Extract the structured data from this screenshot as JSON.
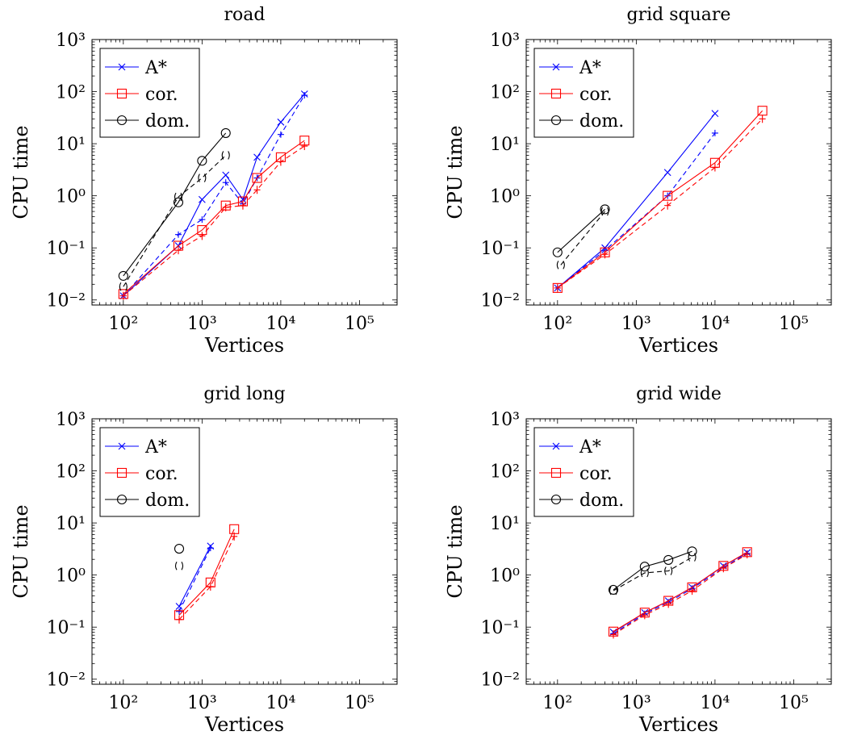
{
  "chart_data": [
    {
      "type": "line",
      "title": "road",
      "xlabel": "Vertices",
      "ylabel": "CPU time",
      "xscale": "log",
      "yscale": "log",
      "xlim": [
        40,
        300000
      ],
      "ylim": [
        0.008,
        1000
      ],
      "xticks": [
        100,
        1000,
        10000,
        100000
      ],
      "yticks": [
        0.01,
        0.1,
        1,
        10,
        100,
        1000
      ],
      "legend": {
        "placement": "top-left",
        "entries": [
          "A*",
          "cor.",
          "dom."
        ]
      },
      "series": [
        {
          "name": "A*",
          "style": "solid",
          "color": "#0000ff",
          "marker": "x",
          "points": [
            [
              100,
              0.012
            ],
            [
              500,
              0.11
            ],
            [
              1000,
              0.85
            ],
            [
              2000,
              2.5
            ],
            [
              3300,
              0.85
            ],
            [
              5000,
              5.5
            ],
            [
              10000,
              26
            ],
            [
              20000,
              90
            ]
          ]
        },
        {
          "name": "A*",
          "style": "dashed",
          "color": "#0000ff",
          "marker": "plus",
          "points": [
            [
              100,
              0.012
            ],
            [
              500,
              0.18
            ],
            [
              1000,
              0.35
            ],
            [
              2000,
              1.8
            ],
            [
              3300,
              0.7
            ],
            [
              5000,
              2.2
            ],
            [
              10000,
              15
            ],
            [
              20000,
              85
            ]
          ]
        },
        {
          "name": "cor.",
          "style": "solid",
          "color": "#ff0000",
          "marker": "square",
          "points": [
            [
              100,
              0.013
            ],
            [
              500,
              0.11
            ],
            [
              1000,
              0.22
            ],
            [
              2000,
              0.65
            ],
            [
              3300,
              0.78
            ],
            [
              5000,
              2.2
            ],
            [
              10000,
              5.5
            ],
            [
              20000,
              11.5
            ]
          ]
        },
        {
          "name": "cor.",
          "style": "dashed",
          "color": "#ff0000",
          "marker": "bar",
          "points": [
            [
              100,
              0.012
            ],
            [
              500,
              0.09
            ],
            [
              1000,
              0.17
            ],
            [
              2000,
              0.6
            ],
            [
              3300,
              0.65
            ],
            [
              5000,
              1.3
            ],
            [
              10000,
              4.5
            ],
            [
              20000,
              9
            ]
          ]
        },
        {
          "name": "dom.",
          "style": "solid",
          "color": "#000000",
          "marker": "circle",
          "points": [
            [
              100,
              0.029
            ],
            [
              500,
              0.75
            ],
            [
              1000,
              4.7
            ],
            [
              2000,
              16
            ]
          ]
        },
        {
          "name": "dom.",
          "style": "dashed",
          "color": "#000000",
          "marker": "arc",
          "points": [
            [
              100,
              0.018
            ],
            [
              500,
              0.95
            ],
            [
              1000,
              2.2
            ],
            [
              2000,
              6
            ]
          ]
        }
      ]
    },
    {
      "type": "line",
      "title": "grid square",
      "xlabel": "Vertices",
      "ylabel": "CPU time",
      "xscale": "log",
      "yscale": "log",
      "xlim": [
        40,
        300000
      ],
      "ylim": [
        0.008,
        1000
      ],
      "xticks": [
        100,
        1000,
        10000,
        100000
      ],
      "yticks": [
        0.01,
        0.1,
        1,
        10,
        100,
        1000
      ],
      "legend": {
        "placement": "top-left",
        "entries": [
          "A*",
          "cor.",
          "dom."
        ]
      },
      "series": [
        {
          "name": "A*",
          "style": "solid",
          "color": "#0000ff",
          "marker": "x",
          "points": [
            [
              100,
              0.017
            ],
            [
              400,
              0.1
            ],
            [
              2500,
              2.8
            ],
            [
              10000,
              38
            ]
          ]
        },
        {
          "name": "A*",
          "style": "dashed",
          "color": "#0000ff",
          "marker": "plus",
          "points": [
            [
              100,
              0.017
            ],
            [
              400,
              0.09
            ],
            [
              2500,
              1.0
            ],
            [
              10000,
              16
            ]
          ]
        },
        {
          "name": "cor.",
          "style": "solid",
          "color": "#ff0000",
          "marker": "square",
          "points": [
            [
              100,
              0.017
            ],
            [
              400,
              0.082
            ],
            [
              2500,
              1.0
            ],
            [
              10000,
              4.3
            ],
            [
              40000,
              43
            ]
          ]
        },
        {
          "name": "cor.",
          "style": "dashed",
          "color": "#ff0000",
          "marker": "bar",
          "points": [
            [
              100,
              0.017
            ],
            [
              400,
              0.075
            ],
            [
              2500,
              0.65
            ],
            [
              10000,
              3.5
            ],
            [
              40000,
              30
            ]
          ]
        },
        {
          "name": "dom.",
          "style": "solid",
          "color": "#000000",
          "marker": "circle",
          "points": [
            [
              100,
              0.082
            ],
            [
              400,
              0.55
            ]
          ]
        },
        {
          "name": "dom.",
          "style": "dashed",
          "color": "#000000",
          "marker": "arc",
          "points": [
            [
              110,
              0.047
            ],
            [
              400,
              0.5
            ]
          ]
        }
      ]
    },
    {
      "type": "line",
      "title": "grid long",
      "xlabel": "Vertices",
      "ylabel": "CPU time",
      "xscale": "log",
      "yscale": "log",
      "xlim": [
        40,
        300000
      ],
      "ylim": [
        0.008,
        1000
      ],
      "xticks": [
        100,
        1000,
        10000,
        100000
      ],
      "yticks": [
        0.01,
        0.1,
        1,
        10,
        100,
        1000
      ],
      "legend": {
        "placement": "top-left",
        "entries": [
          "A*",
          "cor.",
          "dom."
        ]
      },
      "series": [
        {
          "name": "A*",
          "style": "solid",
          "color": "#0000ff",
          "marker": "x",
          "points": [
            [
              512,
              0.25
            ],
            [
              1280,
              3.6
            ]
          ]
        },
        {
          "name": "A*",
          "style": "dashed",
          "color": "#0000ff",
          "marker": "plus",
          "points": [
            [
              512,
              0.2
            ],
            [
              1280,
              3.3
            ]
          ]
        },
        {
          "name": "cor.",
          "style": "solid",
          "color": "#ff0000",
          "marker": "square",
          "points": [
            [
              512,
              0.17
            ],
            [
              1280,
              0.72
            ],
            [
              2560,
              7.6
            ]
          ]
        },
        {
          "name": "cor.",
          "style": "dashed",
          "color": "#ff0000",
          "marker": "bar",
          "points": [
            [
              512,
              0.14
            ],
            [
              1280,
              0.6
            ],
            [
              2560,
              5.5
            ]
          ]
        },
        {
          "name": "dom.",
          "style": "solid",
          "color": "#000000",
          "marker": "circle",
          "points": [
            [
              512,
              3.2
            ]
          ]
        },
        {
          "name": "dom.",
          "style": "dashed",
          "color": "#000000",
          "marker": "arc",
          "points": [
            [
              512,
              1.5
            ]
          ]
        }
      ]
    },
    {
      "type": "line",
      "title": "grid wide",
      "xlabel": "Vertices",
      "ylabel": "CPU time",
      "xscale": "log",
      "yscale": "log",
      "xlim": [
        40,
        300000
      ],
      "ylim": [
        0.008,
        1000
      ],
      "xticks": [
        100,
        1000,
        10000,
        100000
      ],
      "yticks": [
        0.01,
        0.1,
        1,
        10,
        100,
        1000
      ],
      "legend": {
        "placement": "top-left",
        "entries": [
          "A*",
          "cor.",
          "dom."
        ]
      },
      "series": [
        {
          "name": "A*",
          "style": "solid",
          "color": "#0000ff",
          "marker": "x",
          "points": [
            [
              512,
              0.08
            ],
            [
              1280,
              0.19
            ],
            [
              2560,
              0.32
            ],
            [
              5120,
              0.58
            ],
            [
              12800,
              1.5
            ],
            [
              25600,
              2.7
            ]
          ]
        },
        {
          "name": "A*",
          "style": "dashed",
          "color": "#0000ff",
          "marker": "plus",
          "points": [
            [
              512,
              0.075
            ],
            [
              1280,
              0.18
            ],
            [
              2560,
              0.3
            ],
            [
              5120,
              0.55
            ],
            [
              12800,
              1.4
            ],
            [
              25600,
              2.6
            ]
          ]
        },
        {
          "name": "cor.",
          "style": "solid",
          "color": "#ff0000",
          "marker": "square",
          "points": [
            [
              512,
              0.082
            ],
            [
              1280,
              0.19
            ],
            [
              2560,
              0.32
            ],
            [
              5120,
              0.58
            ],
            [
              12800,
              1.5
            ],
            [
              25600,
              2.75
            ]
          ]
        },
        {
          "name": "cor.",
          "style": "dashed",
          "color": "#ff0000",
          "marker": "bar",
          "points": [
            [
              512,
              0.072
            ],
            [
              1280,
              0.17
            ],
            [
              2560,
              0.28
            ],
            [
              5120,
              0.5
            ],
            [
              12800,
              1.35
            ],
            [
              25600,
              2.5
            ]
          ]
        },
        {
          "name": "dom.",
          "style": "solid",
          "color": "#000000",
          "marker": "circle",
          "points": [
            [
              512,
              0.52
            ],
            [
              1280,
              1.45
            ],
            [
              2560,
              1.95
            ],
            [
              5120,
              2.85
            ]
          ]
        },
        {
          "name": "dom.",
          "style": "dashed",
          "color": "#000000",
          "marker": "arc",
          "points": [
            [
              512,
              0.5
            ],
            [
              1280,
              1.1
            ],
            [
              2560,
              1.2
            ],
            [
              5120,
              2.2
            ]
          ]
        }
      ]
    }
  ]
}
